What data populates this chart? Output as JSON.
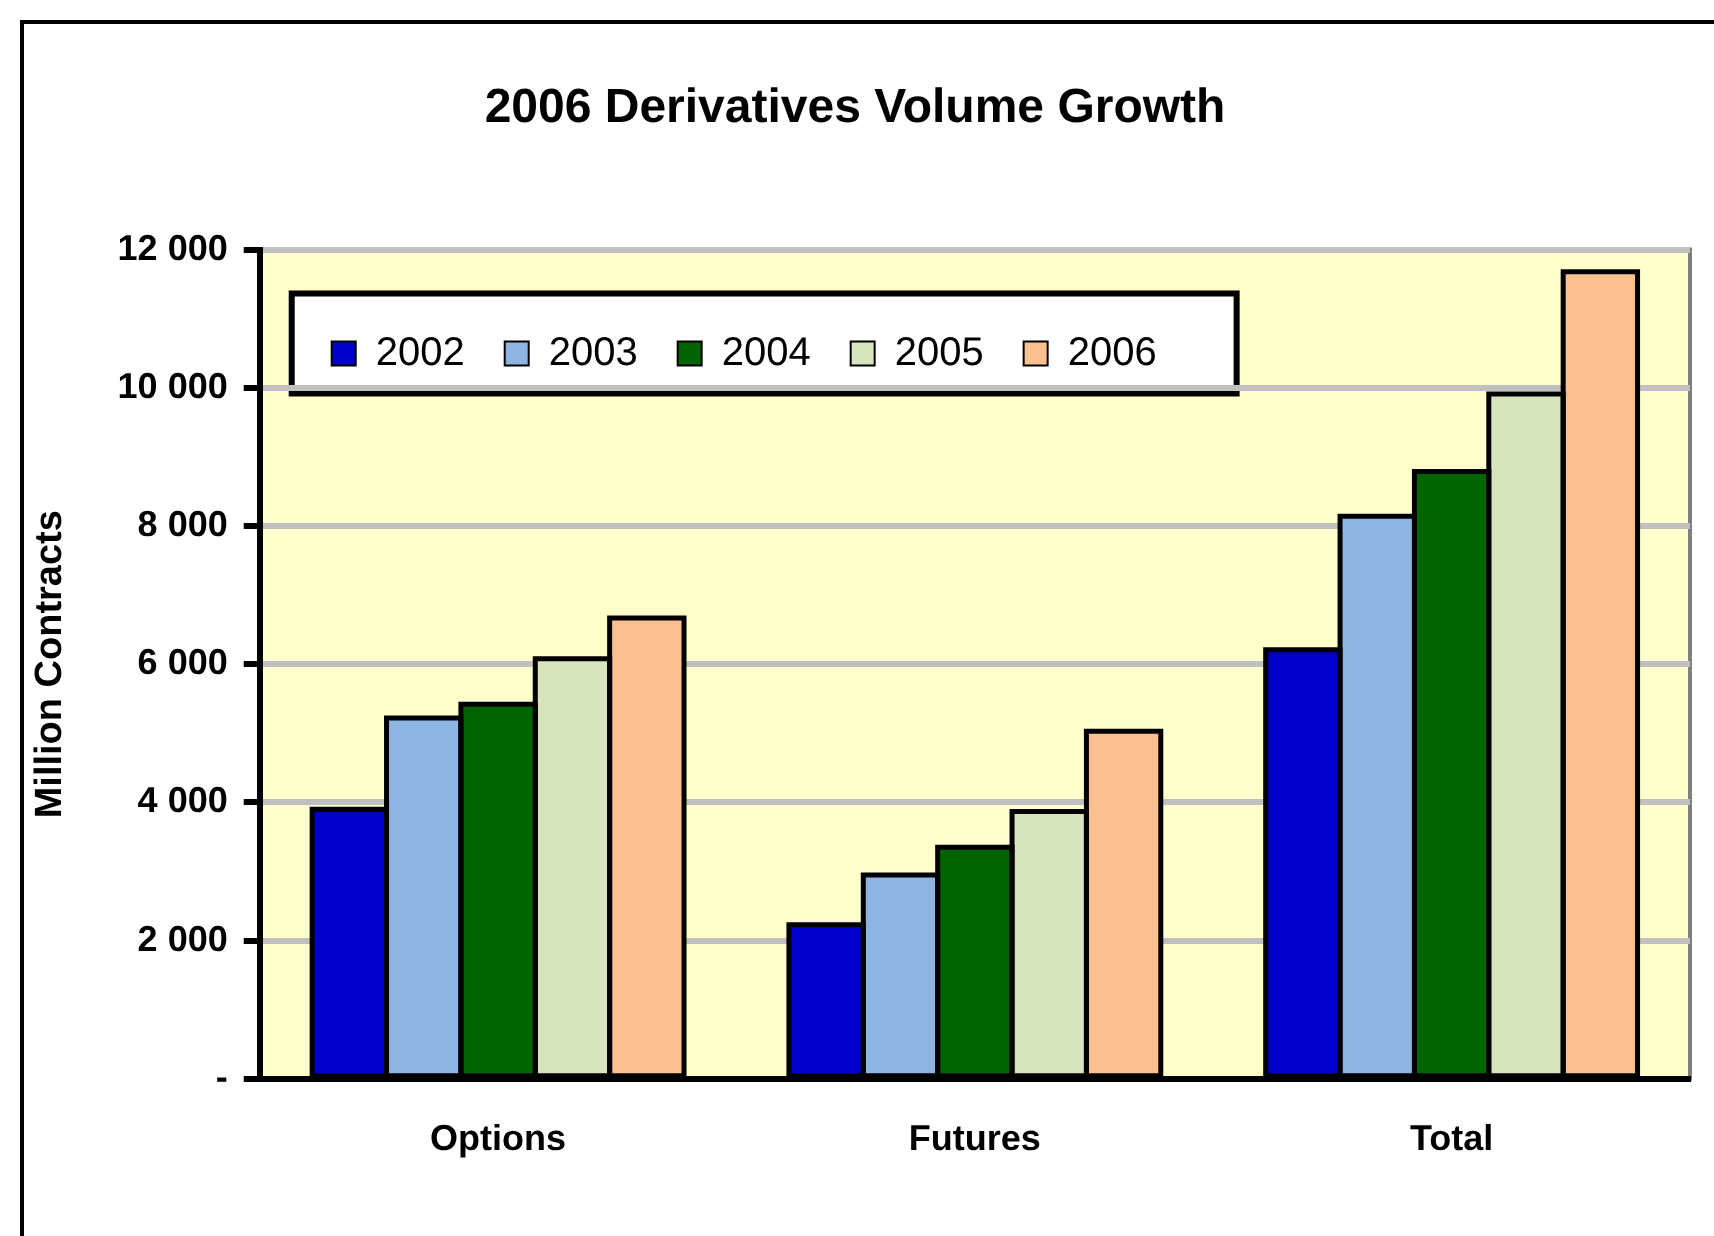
{
  "chart_data": {
    "type": "bar",
    "title": "2006 Derivatives Volume Growth",
    "ylabel": "Million Contracts",
    "categories": [
      "Options",
      "Futures",
      "Total"
    ],
    "series": [
      {
        "name": "2002",
        "color": "#0000cc",
        "values": [
          3900,
          2230,
          6210
        ]
      },
      {
        "name": "2003",
        "color": "#8eb4e3",
        "values": [
          5220,
          2950,
          8140
        ]
      },
      {
        "name": "2004",
        "color": "#006400",
        "values": [
          5420,
          3350,
          8790
        ]
      },
      {
        "name": "2005",
        "color": "#d8e4bc",
        "values": [
          6080,
          3870,
          9910
        ]
      },
      {
        "name": "2006",
        "color": "#fac090",
        "values": [
          6670,
          5030,
          11680
        ]
      }
    ],
    "ylim": [
      0,
      12000
    ],
    "yticks": [
      {
        "value": 0,
        "label": "-"
      },
      {
        "value": 2000,
        "label": "2 000"
      },
      {
        "value": 4000,
        "label": "4 000"
      },
      {
        "value": 6000,
        "label": "6 000"
      },
      {
        "value": 8000,
        "label": "8 000"
      },
      {
        "value": 10000,
        "label": "10 000"
      },
      {
        "value": 12000,
        "label": "12 000"
      }
    ],
    "grid": "y",
    "legend": "top left"
  }
}
